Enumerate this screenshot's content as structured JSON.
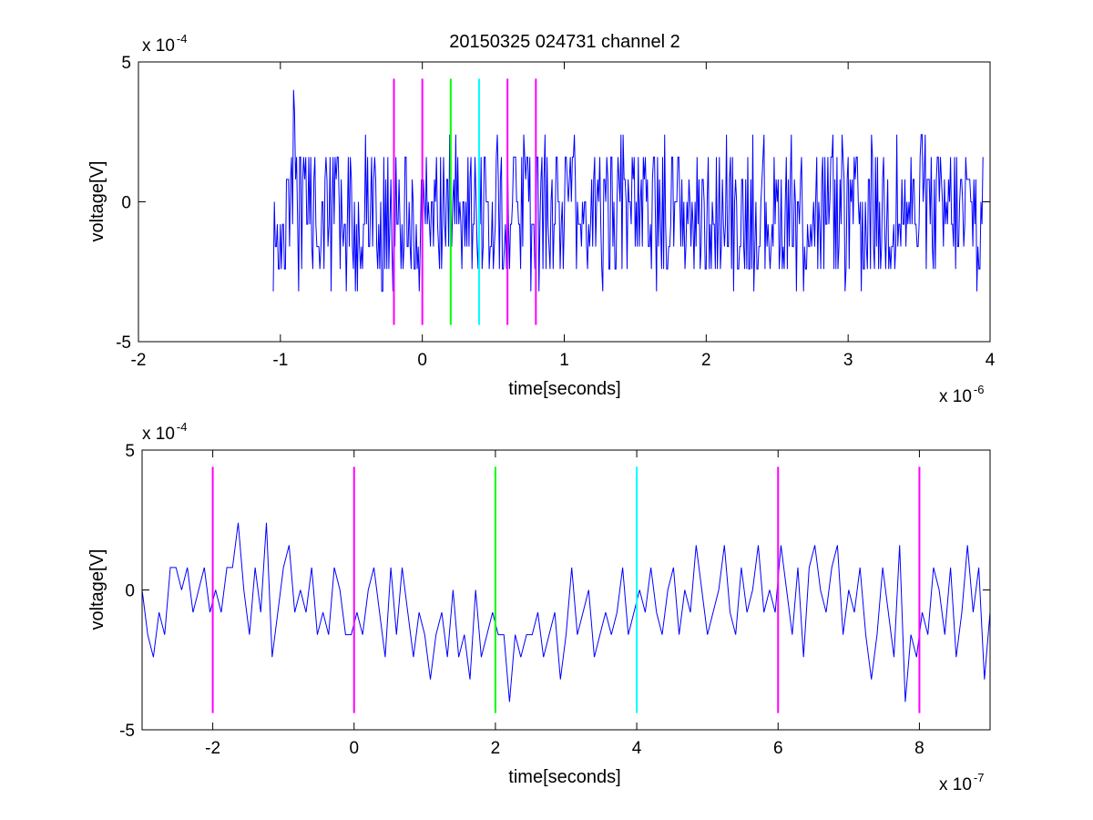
{
  "figure": {
    "title": "20150325 024731 channel 2",
    "background": "#ffffff"
  },
  "colors": {
    "signal": "#0000ff",
    "magenta": "#ff00ff",
    "green": "#00ff00",
    "cyan": "#00ffff",
    "axis": "#000000"
  },
  "chart_data": [
    {
      "type": "line",
      "title": "20150325 024731 channel 2",
      "xlabel": "time[seconds]",
      "ylabel": "voltage[V]",
      "x_exponent": "x 10",
      "x_exponent_power": "-6",
      "y_exponent": "x 10",
      "y_exponent_power": "-4",
      "xlim": [
        -2,
        4
      ],
      "ylim": [
        -5,
        5
      ],
      "xticks": [
        "-2",
        "-1",
        "0",
        "1",
        "2",
        "3",
        "4"
      ],
      "yticks": [
        "-5",
        "0",
        "5"
      ],
      "grid": false,
      "series": [
        {
          "values_note_x_range": [
            -1.05,
            3.95
          ],
          "quantized_levels": [
            -3.2,
            -2.4,
            -1.6,
            -0.8,
            0,
            0.8,
            1.6,
            2.4,
            3.2,
            4.0
          ],
          "peak": {
            "x": -0.91,
            "y": 4.0
          },
          "color": "#0000ff"
        }
      ],
      "vertical_markers": [
        {
          "x": -0.2,
          "color": "magenta"
        },
        {
          "x": 0.0,
          "color": "magenta"
        },
        {
          "x": 0.2,
          "color": "green"
        },
        {
          "x": 0.4,
          "color": "cyan"
        },
        {
          "x": 0.6,
          "color": "magenta"
        },
        {
          "x": 0.8,
          "color": "magenta"
        }
      ],
      "marker_y_range": [
        -4.4,
        4.4
      ]
    },
    {
      "type": "line",
      "xlabel": "time[seconds]",
      "ylabel": "voltage[V]",
      "x_exponent": "x 10",
      "x_exponent_power": "-7",
      "y_exponent": "x 10",
      "y_exponent_power": "-4",
      "xlim": [
        -3,
        9
      ],
      "ylim": [
        -5,
        5
      ],
      "xticks": [
        "-2",
        "0",
        "2",
        "4",
        "6",
        "8"
      ],
      "yticks": [
        "-5",
        "0",
        "5"
      ],
      "grid": false,
      "series": [
        {
          "x": [
            -3.0,
            -2.92,
            -2.84,
            -2.76,
            -2.68,
            -2.6,
            -2.52,
            -2.44,
            -2.36,
            -2.28,
            -2.2,
            -2.12,
            -2.04,
            -1.96,
            -1.88,
            -1.8,
            -1.72,
            -1.64,
            -1.56,
            -1.48,
            -1.4,
            -1.32,
            -1.24,
            -1.16,
            -1.08,
            -1.0,
            -0.92,
            -0.84,
            -0.76,
            -0.68,
            -0.6,
            -0.52,
            -0.44,
            -0.36,
            -0.28,
            -0.2,
            -0.12,
            -0.04,
            0.04,
            0.12,
            0.2,
            0.28,
            0.36,
            0.44,
            0.52,
            0.6,
            0.68,
            0.76,
            0.84,
            0.92,
            1.0,
            1.08,
            1.16,
            1.24,
            1.32,
            1.4,
            1.48,
            1.56,
            1.64,
            1.72,
            1.8,
            1.88,
            1.96,
            2.04,
            2.12,
            2.2,
            2.28,
            2.36,
            2.44,
            2.52,
            2.6,
            2.68,
            2.76,
            2.84,
            2.92,
            3.0,
            3.08,
            3.16,
            3.24,
            3.32,
            3.4,
            3.48,
            3.56,
            3.64,
            3.72,
            3.8,
            3.88,
            3.96,
            4.04,
            4.12,
            4.2,
            4.28,
            4.36,
            4.44,
            4.52,
            4.6,
            4.68,
            4.76,
            4.84,
            4.92,
            5.0,
            5.08,
            5.16,
            5.24,
            5.32,
            5.4,
            5.48,
            5.56,
            5.64,
            5.72,
            5.8,
            5.88,
            5.96,
            6.04,
            6.12,
            6.2,
            6.28,
            6.36,
            6.44,
            6.52,
            6.6,
            6.68,
            6.76,
            6.84,
            6.92,
            7.0,
            7.08,
            7.16,
            7.24,
            7.32,
            7.4,
            7.48,
            7.56,
            7.64,
            7.72,
            7.8,
            7.88,
            7.96,
            8.04,
            8.12,
            8.2,
            8.28,
            8.36,
            8.44,
            8.52,
            8.6,
            8.68,
            8.76,
            8.84,
            8.92,
            9.0
          ],
          "values": [
            0,
            -1.6,
            -2.4,
            -0.8,
            -1.6,
            0.8,
            0.8,
            0,
            0.8,
            -0.8,
            0,
            0.8,
            -0.8,
            0,
            -0.8,
            0.8,
            0.8,
            2.4,
            0,
            -1.6,
            0.8,
            -0.8,
            2.4,
            -2.4,
            -0.8,
            0.8,
            1.6,
            -0.8,
            0,
            -0.8,
            0.8,
            -1.6,
            -0.8,
            -1.6,
            0.8,
            0,
            -1.6,
            -1.6,
            -0.8,
            -1.6,
            0,
            0.8,
            -0.8,
            -2.4,
            0.8,
            -1.6,
            0.8,
            -0.8,
            -2.4,
            -0.8,
            -1.6,
            -3.2,
            -1.6,
            -0.8,
            -2.4,
            0,
            -2.4,
            -1.6,
            -3.2,
            0,
            -2.4,
            -1.6,
            -0.8,
            -1.6,
            -1.6,
            -4.0,
            -1.6,
            -2.4,
            -1.6,
            -1.6,
            -0.8,
            -2.4,
            -1.6,
            -0.8,
            -3.2,
            -1.6,
            0.8,
            -1.6,
            -0.8,
            0,
            -2.4,
            -1.6,
            -0.8,
            -1.6,
            -0.8,
            0.8,
            -1.6,
            -0.8,
            0,
            -0.8,
            0.8,
            -0.8,
            -1.6,
            0,
            0.8,
            -1.6,
            0,
            -0.8,
            1.6,
            0,
            -1.6,
            -0.8,
            0,
            1.6,
            -0.8,
            -1.6,
            0.8,
            -0.8,
            0,
            1.6,
            -0.8,
            0,
            -0.8,
            1.6,
            0,
            -1.6,
            0.8,
            -2.4,
            0.8,
            1.6,
            0,
            -0.8,
            0.8,
            1.6,
            -1.6,
            0,
            -0.8,
            0.8,
            -1.6,
            -3.2,
            -1.6,
            0.8,
            -0.8,
            -2.4,
            1.6,
            -4.0,
            -1.6,
            -2.4,
            -0.8,
            -1.6,
            0.8,
            0,
            -1.6,
            0.8,
            -2.4,
            -0.8,
            1.6,
            -0.8,
            0.8,
            -3.2,
            -0.8
          ],
          "color": "#0000ff"
        }
      ],
      "vertical_markers": [
        {
          "x": -2,
          "color": "magenta"
        },
        {
          "x": 0,
          "color": "magenta"
        },
        {
          "x": 2,
          "color": "green"
        },
        {
          "x": 4,
          "color": "cyan"
        },
        {
          "x": 6,
          "color": "magenta"
        },
        {
          "x": 8,
          "color": "magenta"
        }
      ],
      "marker_y_range": [
        -4.4,
        4.4
      ]
    }
  ]
}
